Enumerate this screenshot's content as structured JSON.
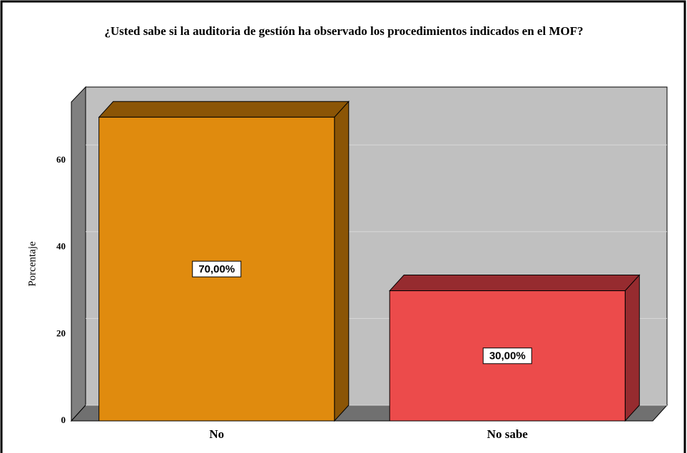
{
  "chart_data": {
    "type": "bar3d",
    "title": "¿Usted sabe si la auditoria de gestión ha observado los procedimientos indicados en el MOF?",
    "y_label": "Porcentaje",
    "categories": [
      "No",
      "No sabe"
    ],
    "values": [
      70,
      30
    ],
    "value_labels": [
      "70,00%",
      "30,00%"
    ],
    "colors": [
      "#e08b0e",
      "#ec4b4b"
    ],
    "side_colors": [
      "#8b5506",
      "#962b2f"
    ],
    "ylim": [
      0,
      73.5
    ],
    "yticks": [
      0,
      20,
      40,
      60
    ],
    "grid": true
  }
}
